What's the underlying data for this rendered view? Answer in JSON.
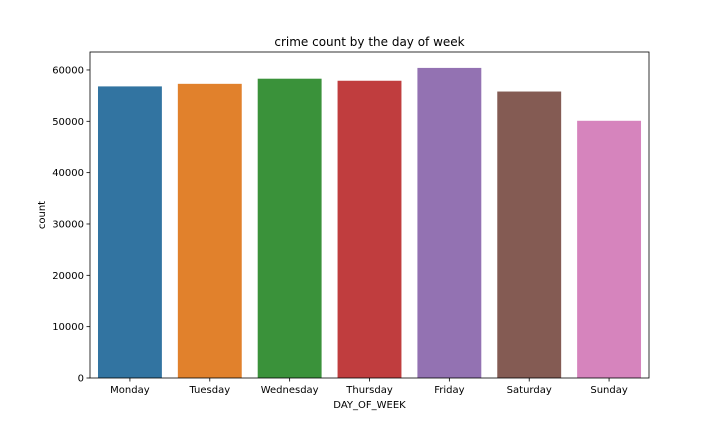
{
  "chart_data": {
    "type": "bar",
    "title": "crime count by the day of week",
    "xlabel": "DAY_OF_WEEK",
    "ylabel": "count",
    "categories": [
      "Monday",
      "Tuesday",
      "Wednesday",
      "Thursday",
      "Friday",
      "Saturday",
      "Sunday"
    ],
    "values": [
      56800,
      57300,
      58300,
      57900,
      60400,
      55800,
      50100
    ],
    "colors": [
      "#3274a1",
      "#e1812c",
      "#3a923a",
      "#c03d3e",
      "#9372b2",
      "#845b53",
      "#d684bd"
    ],
    "ylim": [
      0,
      63500
    ],
    "yticks": [
      0,
      10000,
      20000,
      30000,
      40000,
      50000,
      60000
    ],
    "grid": false,
    "legend": "none"
  }
}
